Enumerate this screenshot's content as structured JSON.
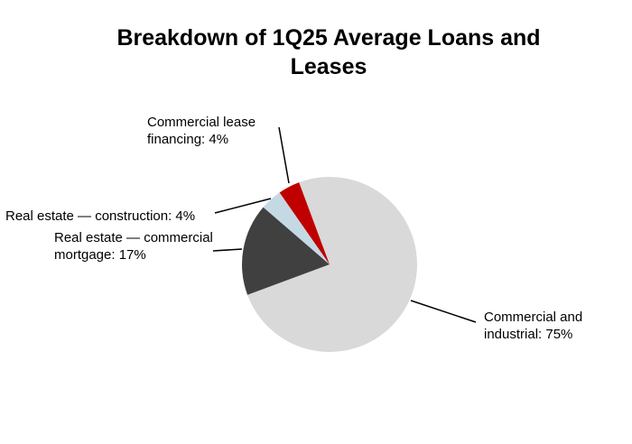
{
  "chart_data": {
    "type": "pie",
    "title": "Breakdown of 1Q25 Average Loans and Leases",
    "values": [
      75,
      17,
      4,
      4
    ],
    "value_labels": [
      "Commercial and industrial: 75%",
      "Real estate — commercial mortgage: 17%",
      "Real estate — construction: 4%",
      "Commercial lease financing: 4%"
    ],
    "colors": [
      "#d9d9d9",
      "#404040",
      "#c5d9e4",
      "#c00000"
    ]
  }
}
